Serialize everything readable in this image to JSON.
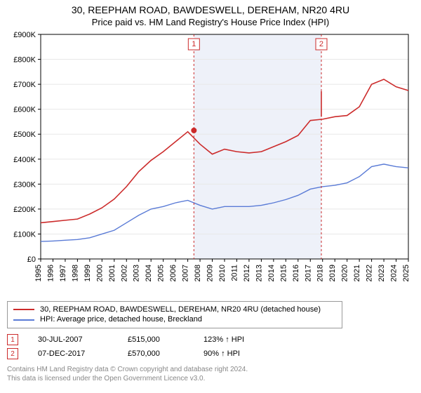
{
  "title": "30, REEPHAM ROAD, BAWDESWELL, DEREHAM, NR20 4RU",
  "subtitle": "Price paid vs. HM Land Registry's House Price Index (HPI)",
  "chart": {
    "type": "line",
    "plot_bg": "#ffffff",
    "shade_bg": "#eef1f9",
    "ylabel_prefix": "£",
    "ylim": [
      0,
      900
    ],
    "ytick_step": 100,
    "ytick_labels": [
      "£0",
      "£100K",
      "£200K",
      "£300K",
      "£400K",
      "£500K",
      "£600K",
      "£700K",
      "£800K",
      "£900K"
    ],
    "x_years": [
      1995,
      1996,
      1997,
      1998,
      1999,
      2000,
      2001,
      2002,
      2003,
      2004,
      2005,
      2006,
      2007,
      2008,
      2009,
      2010,
      2011,
      2012,
      2013,
      2014,
      2015,
      2016,
      2017,
      2018,
      2019,
      2020,
      2021,
      2022,
      2023,
      2024,
      2025
    ],
    "shade_from_year": 2007.5,
    "shade_to_year": 2017.9,
    "series": [
      {
        "name": "property",
        "label": "30, REEPHAM ROAD, BAWDESWELL, DEREHAM, NR20 4RU (detached house)",
        "color": "#cc2b2b",
        "width": 1.6,
        "y_per_year": [
          145,
          150,
          155,
          160,
          180,
          205,
          240,
          290,
          350,
          395,
          430,
          470,
          510,
          460,
          420,
          440,
          430,
          425,
          430,
          450,
          470,
          495,
          555,
          560,
          570,
          575,
          610,
          700,
          720,
          690,
          675
        ]
      },
      {
        "name": "hpi",
        "label": "HPI: Average price, detached house, Breckland",
        "color": "#5a7bd6",
        "width": 1.4,
        "y_per_year": [
          70,
          72,
          75,
          78,
          85,
          100,
          115,
          145,
          175,
          200,
          210,
          225,
          235,
          215,
          200,
          210,
          210,
          210,
          215,
          225,
          238,
          255,
          280,
          290,
          295,
          305,
          330,
          370,
          380,
          370,
          365
        ]
      }
    ],
    "marker_dots": [
      {
        "year": 2007.5,
        "y": 515,
        "r": 4,
        "fill": "#cc2b2b"
      }
    ],
    "sale_jump": {
      "year": 2017.9,
      "from_y": 672,
      "to_y": 570,
      "color": "#cc2b2b"
    },
    "markers": [
      {
        "n": "1",
        "year": 2007.5
      },
      {
        "n": "2",
        "year": 2017.9
      }
    ]
  },
  "legend": {
    "rows": [
      {
        "color": "#cc2b2b",
        "text": "30, REEPHAM ROAD, BAWDESWELL, DEREHAM, NR20 4RU (detached house)"
      },
      {
        "color": "#5a7bd6",
        "text": "HPI: Average price, detached house, Breckland"
      }
    ]
  },
  "events": [
    {
      "n": "1",
      "date": "30-JUL-2007",
      "price": "£515,000",
      "delta": "123% ↑ HPI"
    },
    {
      "n": "2",
      "date": "07-DEC-2017",
      "price": "£570,000",
      "delta": "90% ↑ HPI"
    }
  ],
  "footnote_l1": "Contains HM Land Registry data © Crown copyright and database right 2024.",
  "footnote_l2": "This data is licensed under the Open Government Licence v3.0."
}
